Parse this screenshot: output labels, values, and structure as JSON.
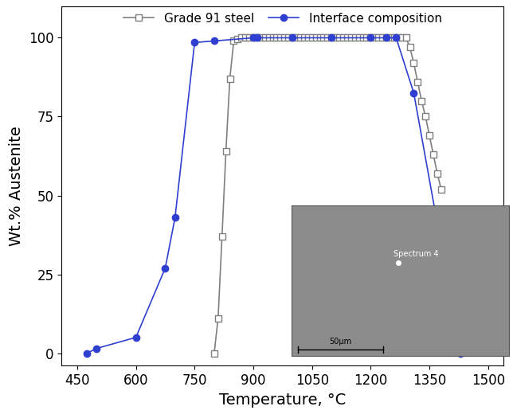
{
  "chart_data": {
    "type": "line",
    "x_label": "Temperature, °C",
    "y_label": "Wt.% Austenite",
    "xlim": [
      410,
      1540
    ],
    "ylim": [
      -4,
      110
    ],
    "xticks": [
      450,
      600,
      750,
      900,
      1050,
      1200,
      1350,
      1500
    ],
    "yticks": [
      0,
      25,
      50,
      75,
      100
    ],
    "grid": false,
    "legend": "upper center",
    "annotations": [
      "Spectrum 4",
      "50µm"
    ],
    "series": [
      {
        "name": "Grade 91 steel",
        "color": "#7f7f7f",
        "marker": "square",
        "line_style": "solid",
        "x": [
          800,
          810,
          820,
          830,
          840,
          850,
          860,
          870,
          880,
          890,
          900,
          910,
          920,
          930,
          940,
          950,
          960,
          970,
          980,
          990,
          1000,
          1010,
          1020,
          1030,
          1040,
          1050,
          1060,
          1070,
          1080,
          1090,
          1100,
          1110,
          1120,
          1130,
          1140,
          1150,
          1160,
          1170,
          1180,
          1190,
          1200,
          1210,
          1220,
          1230,
          1240,
          1250,
          1260,
          1270,
          1280,
          1290,
          1300,
          1310,
          1320,
          1330,
          1340,
          1350,
          1360,
          1370,
          1380
        ],
        "values": [
          0,
          11,
          37,
          64,
          87,
          99,
          99.5,
          100,
          100,
          100,
          100,
          100,
          100,
          100,
          100,
          100,
          100,
          100,
          100,
          100,
          100,
          100,
          100,
          100,
          100,
          100,
          100,
          100,
          100,
          100,
          100,
          100,
          100,
          100,
          100,
          100,
          100,
          100,
          100,
          100,
          100,
          100,
          100,
          100,
          100,
          100,
          100,
          100,
          100,
          100,
          97,
          92,
          86,
          80,
          75,
          69,
          63,
          57,
          52
        ]
      },
      {
        "name": "Interface composition",
        "color": "#2f3fd0",
        "marker": "circle",
        "line_style": "solid",
        "x": [
          475,
          500,
          600,
          675,
          700,
          750,
          800,
          900,
          910,
          1000,
          1100,
          1200,
          1240,
          1265,
          1310,
          1430
        ],
        "values": [
          0,
          1.5,
          5,
          27,
          43,
          98.5,
          99,
          100,
          100,
          100,
          100,
          100,
          100,
          100,
          82.5,
          0
        ]
      }
    ]
  }
}
